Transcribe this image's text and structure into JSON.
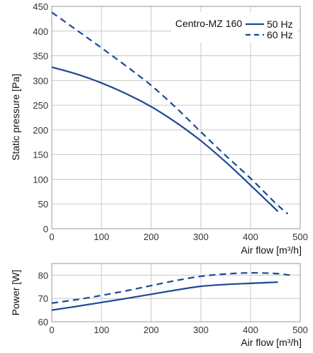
{
  "chart_data": [
    {
      "type": "line",
      "title": "",
      "xlabel": "Air flow [m³/h]",
      "ylabel": "Static pressure [Pa]",
      "xlim": [
        0,
        500
      ],
      "ylim": [
        0,
        450
      ],
      "xticks": [
        0,
        100,
        200,
        300,
        400,
        500
      ],
      "yticks": [
        0,
        50,
        100,
        150,
        200,
        250,
        300,
        350,
        400,
        450
      ],
      "grid": true,
      "legend": {
        "title": "Centro-MZ 160",
        "placement": "top-right",
        "entries": [
          "50 Hz",
          "60 Hz"
        ]
      },
      "color": "#1b4a94",
      "series": [
        {
          "name": "50 Hz",
          "style": "solid",
          "x": [
            0,
            50,
            100,
            150,
            200,
            250,
            300,
            350,
            400,
            455
          ],
          "y": [
            327,
            313,
            295,
            273,
            247,
            215,
            178,
            135,
            88,
            35
          ]
        },
        {
          "name": "60 Hz",
          "style": "dashed",
          "x": [
            0,
            50,
            100,
            150,
            200,
            250,
            300,
            350,
            400,
            450,
            475
          ],
          "y": [
            438,
            402,
            366,
            329,
            290,
            245,
            196,
            148,
            102,
            52,
            30
          ]
        }
      ]
    },
    {
      "type": "line",
      "title": "",
      "xlabel": "Air flow [m³/h]",
      "ylabel": "Power [W]",
      "xlim": [
        0,
        500
      ],
      "ylim": [
        60,
        85
      ],
      "xticks": [
        0,
        100,
        200,
        300,
        400,
        500
      ],
      "yticks": [
        60,
        70,
        80
      ],
      "grid": true,
      "color": "#1b4a94",
      "series": [
        {
          "name": "50 Hz",
          "style": "solid",
          "x": [
            0,
            50,
            100,
            150,
            200,
            250,
            300,
            350,
            400,
            455
          ],
          "y": [
            65,
            66.6,
            68.3,
            70,
            71.8,
            73.6,
            75.2,
            76,
            76.5,
            77
          ]
        },
        {
          "name": "60 Hz",
          "style": "dashed",
          "x": [
            0,
            50,
            100,
            150,
            200,
            250,
            300,
            350,
            400,
            450,
            480
          ],
          "y": [
            68,
            69.5,
            71.3,
            73.3,
            75.5,
            77.7,
            79.5,
            80.5,
            81,
            80.7,
            80
          ]
        }
      ]
    }
  ]
}
